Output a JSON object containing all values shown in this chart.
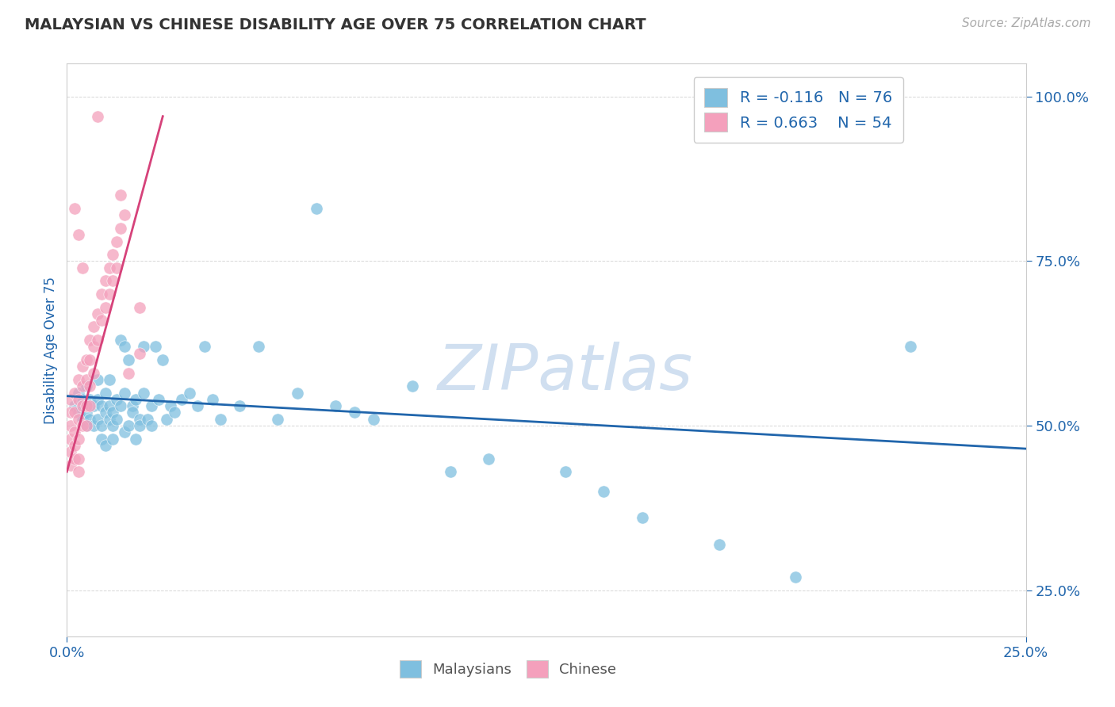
{
  "title": "MALAYSIAN VS CHINESE DISABILITY AGE OVER 75 CORRELATION CHART",
  "source_text": "Source: ZipAtlas.com",
  "ylabel": "Disability Age Over 75",
  "xlim": [
    0.0,
    0.25
  ],
  "ylim": [
    0.18,
    1.05
  ],
  "xticks": [
    0.0,
    0.25
  ],
  "xticklabels": [
    "0.0%",
    "25.0%"
  ],
  "yticks": [
    0.25,
    0.5,
    0.75,
    1.0
  ],
  "yticklabels": [
    "25.0%",
    "50.0%",
    "75.0%",
    "100.0%"
  ],
  "malaysian_color": "#7fbfdf",
  "chinese_color": "#f4a0bc",
  "trend_malaysian_color": "#2166ac",
  "trend_chinese_color": "#d6427a",
  "R_malaysian": -0.116,
  "N_malaysian": 76,
  "R_chinese": 0.663,
  "N_chinese": 54,
  "legend_text_color": "#2166ac",
  "axis_label_color": "#2166ac",
  "tick_color": "#2166ac",
  "watermark_text": "ZIPatlas",
  "watermark_color": "#d0dff0",
  "malaysian_points": [
    [
      0.002,
      0.53
    ],
    [
      0.003,
      0.52
    ],
    [
      0.003,
      0.55
    ],
    [
      0.004,
      0.51
    ],
    [
      0.004,
      0.54
    ],
    [
      0.005,
      0.52
    ],
    [
      0.005,
      0.5
    ],
    [
      0.005,
      0.56
    ],
    [
      0.006,
      0.51
    ],
    [
      0.006,
      0.54
    ],
    [
      0.007,
      0.5
    ],
    [
      0.007,
      0.53
    ],
    [
      0.008,
      0.51
    ],
    [
      0.008,
      0.54
    ],
    [
      0.008,
      0.57
    ],
    [
      0.009,
      0.5
    ],
    [
      0.009,
      0.48
    ],
    [
      0.009,
      0.53
    ],
    [
      0.01,
      0.52
    ],
    [
      0.01,
      0.55
    ],
    [
      0.01,
      0.47
    ],
    [
      0.011,
      0.51
    ],
    [
      0.011,
      0.53
    ],
    [
      0.011,
      0.57
    ],
    [
      0.012,
      0.5
    ],
    [
      0.012,
      0.48
    ],
    [
      0.012,
      0.52
    ],
    [
      0.013,
      0.51
    ],
    [
      0.013,
      0.54
    ],
    [
      0.014,
      0.63
    ],
    [
      0.014,
      0.53
    ],
    [
      0.015,
      0.62
    ],
    [
      0.015,
      0.49
    ],
    [
      0.015,
      0.55
    ],
    [
      0.016,
      0.6
    ],
    [
      0.016,
      0.5
    ],
    [
      0.017,
      0.53
    ],
    [
      0.017,
      0.52
    ],
    [
      0.018,
      0.54
    ],
    [
      0.018,
      0.48
    ],
    [
      0.019,
      0.51
    ],
    [
      0.019,
      0.5
    ],
    [
      0.02,
      0.62
    ],
    [
      0.02,
      0.55
    ],
    [
      0.021,
      0.51
    ],
    [
      0.022,
      0.5
    ],
    [
      0.022,
      0.53
    ],
    [
      0.023,
      0.62
    ],
    [
      0.024,
      0.54
    ],
    [
      0.025,
      0.6
    ],
    [
      0.026,
      0.51
    ],
    [
      0.027,
      0.53
    ],
    [
      0.028,
      0.52
    ],
    [
      0.03,
      0.54
    ],
    [
      0.032,
      0.55
    ],
    [
      0.034,
      0.53
    ],
    [
      0.036,
      0.62
    ],
    [
      0.038,
      0.54
    ],
    [
      0.04,
      0.51
    ],
    [
      0.045,
      0.53
    ],
    [
      0.05,
      0.62
    ],
    [
      0.055,
      0.51
    ],
    [
      0.06,
      0.55
    ],
    [
      0.065,
      0.83
    ],
    [
      0.07,
      0.53
    ],
    [
      0.075,
      0.52
    ],
    [
      0.08,
      0.51
    ],
    [
      0.09,
      0.56
    ],
    [
      0.1,
      0.43
    ],
    [
      0.11,
      0.45
    ],
    [
      0.13,
      0.43
    ],
    [
      0.14,
      0.4
    ],
    [
      0.15,
      0.36
    ],
    [
      0.17,
      0.32
    ],
    [
      0.19,
      0.27
    ],
    [
      0.22,
      0.62
    ]
  ],
  "chinese_points": [
    [
      0.001,
      0.52
    ],
    [
      0.001,
      0.54
    ],
    [
      0.001,
      0.5
    ],
    [
      0.001,
      0.48
    ],
    [
      0.001,
      0.46
    ],
    [
      0.001,
      0.44
    ],
    [
      0.002,
      0.55
    ],
    [
      0.002,
      0.52
    ],
    [
      0.002,
      0.49
    ],
    [
      0.002,
      0.47
    ],
    [
      0.002,
      0.45
    ],
    [
      0.003,
      0.57
    ],
    [
      0.003,
      0.54
    ],
    [
      0.003,
      0.51
    ],
    [
      0.003,
      0.48
    ],
    [
      0.003,
      0.45
    ],
    [
      0.003,
      0.43
    ],
    [
      0.004,
      0.59
    ],
    [
      0.004,
      0.56
    ],
    [
      0.004,
      0.53
    ],
    [
      0.004,
      0.5
    ],
    [
      0.005,
      0.6
    ],
    [
      0.005,
      0.57
    ],
    [
      0.005,
      0.53
    ],
    [
      0.005,
      0.5
    ],
    [
      0.006,
      0.63
    ],
    [
      0.006,
      0.6
    ],
    [
      0.006,
      0.56
    ],
    [
      0.006,
      0.53
    ],
    [
      0.007,
      0.65
    ],
    [
      0.007,
      0.62
    ],
    [
      0.007,
      0.58
    ],
    [
      0.008,
      0.67
    ],
    [
      0.008,
      0.63
    ],
    [
      0.008,
      0.97
    ],
    [
      0.009,
      0.7
    ],
    [
      0.009,
      0.66
    ],
    [
      0.01,
      0.72
    ],
    [
      0.01,
      0.68
    ],
    [
      0.011,
      0.74
    ],
    [
      0.011,
      0.7
    ],
    [
      0.012,
      0.76
    ],
    [
      0.012,
      0.72
    ],
    [
      0.013,
      0.78
    ],
    [
      0.013,
      0.74
    ],
    [
      0.014,
      0.8
    ],
    [
      0.014,
      0.85
    ],
    [
      0.015,
      0.82
    ],
    [
      0.016,
      0.58
    ],
    [
      0.019,
      0.61
    ],
    [
      0.019,
      0.68
    ],
    [
      0.002,
      0.83
    ],
    [
      0.003,
      0.79
    ],
    [
      0.004,
      0.74
    ]
  ],
  "trend_m_x0": 0.0,
  "trend_m_y0": 0.545,
  "trend_m_x1": 0.25,
  "trend_m_y1": 0.465,
  "trend_c_x0": 0.0,
  "trend_c_y0": 0.43,
  "trend_c_x1": 0.025,
  "trend_c_y1": 0.97
}
